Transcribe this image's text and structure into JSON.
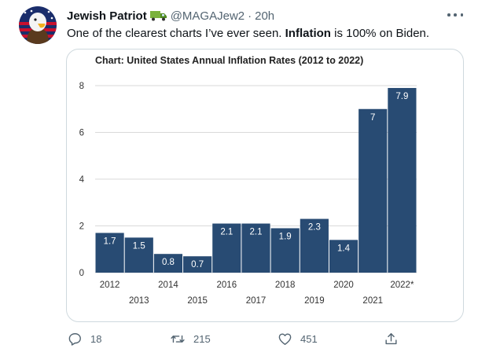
{
  "tweet": {
    "display_name": "Jewish Patriot",
    "handle": "@MAGAJew2",
    "separator": "·",
    "time": "20h",
    "text_before": "One of the clearest charts I’ve ever seen. ",
    "text_bold": "Inflation",
    "text_after": " is 100% on Biden.",
    "icons": {
      "avatar": "eagle-flag-avatar",
      "name_badge": "truck-icon",
      "more": "more-options-icon"
    }
  },
  "chart_data": {
    "type": "bar",
    "title": "Chart: United States Annual Inflation Rates (2012 to 2022)",
    "categories": [
      "2012",
      "2013",
      "2014",
      "2015",
      "2016",
      "2017",
      "2018",
      "2019",
      "2020",
      "2021",
      "2022*"
    ],
    "values": [
      1.7,
      1.5,
      0.8,
      0.7,
      2.1,
      2.1,
      1.9,
      2.3,
      1.4,
      7,
      7.9
    ],
    "value_labels": [
      "1.7",
      "1.5",
      "0.8",
      "0.7",
      "2.1",
      "2.1",
      "1.9",
      "2.3",
      "1.4",
      "7",
      "7.9"
    ],
    "xlabel": "",
    "ylabel": "",
    "ylim": [
      0,
      8
    ],
    "yticks": [
      "0",
      "2",
      "4",
      "6",
      "8"
    ],
    "grid": true,
    "bar_color": "#284b73",
    "grid_color": "#d9d9d9"
  },
  "actions": {
    "reply": {
      "icon": "reply-icon",
      "count": "18"
    },
    "retweet": {
      "icon": "retweet-icon",
      "count": "215"
    },
    "like": {
      "icon": "heart-icon",
      "count": "451"
    },
    "share": {
      "icon": "share-icon"
    }
  },
  "colors": {
    "text_primary": "#0f1419",
    "text_secondary": "#536471",
    "border": "#cfd9de"
  }
}
